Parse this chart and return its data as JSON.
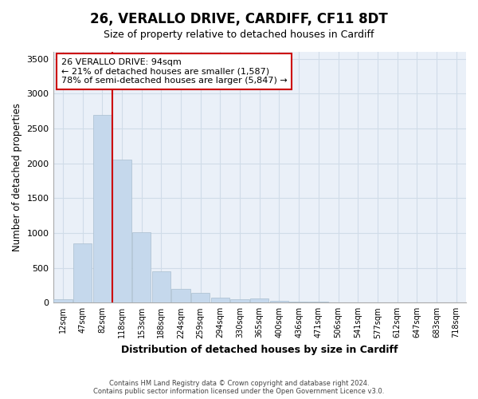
{
  "title": "26, VERALLO DRIVE, CARDIFF, CF11 8DT",
  "subtitle": "Size of property relative to detached houses in Cardiff",
  "xlabel": "Distribution of detached houses by size in Cardiff",
  "ylabel": "Number of detached properties",
  "categories": [
    "12sqm",
    "47sqm",
    "82sqm",
    "118sqm",
    "153sqm",
    "188sqm",
    "224sqm",
    "259sqm",
    "294sqm",
    "330sqm",
    "365sqm",
    "400sqm",
    "436sqm",
    "471sqm",
    "506sqm",
    "541sqm",
    "577sqm",
    "612sqm",
    "647sqm",
    "683sqm",
    "718sqm"
  ],
  "values": [
    50,
    850,
    2700,
    2050,
    1010,
    450,
    200,
    140,
    75,
    50,
    60,
    30,
    20,
    10,
    5,
    2,
    1,
    0,
    0,
    0,
    0
  ],
  "bar_color": "#c5d8ec",
  "bar_edge_color": "#aabfcf",
  "grid_color": "#d0dce8",
  "background_color": "#eaf0f8",
  "vline_color": "#cc0000",
  "vline_pos": 2.5,
  "annotation_text": "26 VERALLO DRIVE: 94sqm\n← 21% of detached houses are smaller (1,587)\n78% of semi-detached houses are larger (5,847) →",
  "annotation_box_color": "#ffffff",
  "annotation_border_color": "#cc0000",
  "ylim": [
    0,
    3600
  ],
  "yticks": [
    0,
    500,
    1000,
    1500,
    2000,
    2500,
    3000,
    3500
  ],
  "title_fontsize": 12,
  "subtitle_fontsize": 9,
  "footer_line1": "Contains HM Land Registry data © Crown copyright and database right 2024.",
  "footer_line2": "Contains public sector information licensed under the Open Government Licence v3.0."
}
